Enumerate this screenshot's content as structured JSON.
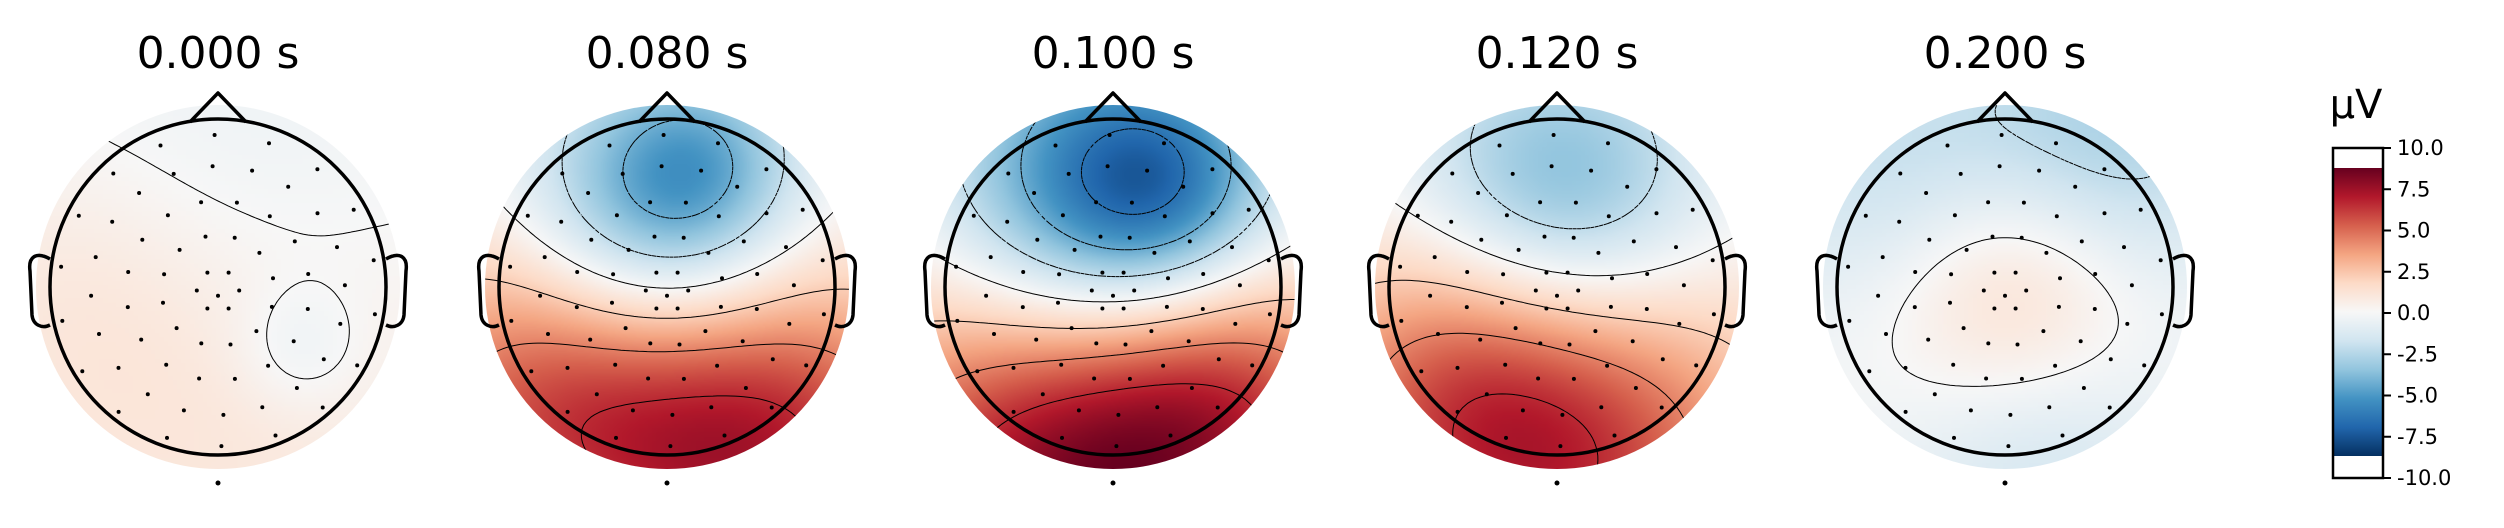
{
  "chart_data": {
    "type": "heatmap",
    "description_kind": "topomap",
    "times": [
      "0.000 s",
      "0.080 s",
      "0.100 s",
      "0.120 s",
      "0.200 s"
    ],
    "colorbar": {
      "title": "µV",
      "range": [
        -10.0,
        10.0
      ],
      "ticks": [
        10.0,
        7.5,
        5.0,
        2.5,
        0.0,
        -2.5,
        -5.0,
        -7.5,
        -10.0
      ],
      "tick_labels": [
        "10.0",
        "7.5",
        "5.0",
        "2.5",
        "0.0",
        "-2.5",
        "-5.0",
        "-7.5",
        "-10.0"
      ],
      "colors": [
        "#053061",
        "#2166ac",
        "#4393c3",
        "#92c5de",
        "#d1e5f0",
        "#f7f7f7",
        "#fddbc7",
        "#f4a582",
        "#d6604d",
        "#b2182b",
        "#67001f"
      ]
    },
    "maps": [
      {
        "label": "0.000 s",
        "components": [
          {
            "u": 0.0,
            "v": -0.35,
            "r": 0.9,
            "value": -1.2
          },
          {
            "u": 0.0,
            "v": 0.55,
            "r": 1.0,
            "value": 1.6
          },
          {
            "u": -0.8,
            "v": 0.0,
            "r": 0.6,
            "value": 0.8
          },
          {
            "u": 0.45,
            "v": 0.35,
            "r": 0.25,
            "value": -1.0
          }
        ]
      },
      {
        "label": "0.080 s",
        "components": [
          {
            "u": -0.05,
            "v": -0.4,
            "r": 0.55,
            "value": -6.5
          },
          {
            "u": 0.2,
            "v": -0.7,
            "r": 0.35,
            "value": -2.0
          },
          {
            "u": 0.55,
            "v": 0.9,
            "r": 0.75,
            "value": 7.5
          },
          {
            "u": -0.7,
            "v": 0.6,
            "r": 0.7,
            "value": 5.5
          }
        ]
      },
      {
        "label": "0.100 s",
        "components": [
          {
            "u": -0.05,
            "v": -0.45,
            "r": 0.65,
            "value": -8.5
          },
          {
            "u": 0.3,
            "v": -0.55,
            "r": 0.4,
            "value": -3.0
          },
          {
            "u": -0.2,
            "v": 1.0,
            "r": 0.9,
            "value": 9.5
          },
          {
            "u": 0.7,
            "v": 0.6,
            "r": 0.6,
            "value": 3.5
          }
        ]
      },
      {
        "label": "0.120 s",
        "components": [
          {
            "u": 0.0,
            "v": -0.45,
            "r": 0.6,
            "value": -6.0
          },
          {
            "u": 0.0,
            "v": 0.9,
            "r": 0.85,
            "value": 7.5
          },
          {
            "u": -0.6,
            "v": 0.4,
            "r": 0.6,
            "value": 2.5
          }
        ]
      },
      {
        "label": "0.200 s",
        "components": [
          {
            "u": 0.05,
            "v": -0.05,
            "r": 0.55,
            "value": 3.5
          },
          {
            "u": 0.55,
            "v": -0.75,
            "r": 0.6,
            "value": -3.5
          },
          {
            "u": -0.6,
            "v": -0.6,
            "r": 0.6,
            "value": -2.5
          },
          {
            "u": 0.2,
            "v": 0.95,
            "r": 0.6,
            "value": -2.0
          }
        ]
      }
    ]
  }
}
